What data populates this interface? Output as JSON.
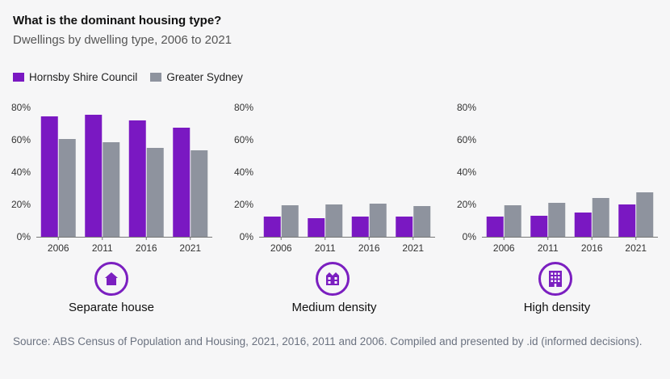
{
  "header": {
    "title": "What is the dominant housing type?",
    "subtitle": "Dwellings by dwelling type, 2006 to 2021"
  },
  "legend": [
    {
      "label": "Hornsby Shire Council",
      "color": "#7a18c2"
    },
    {
      "label": "Greater Sydney",
      "color": "#8e939e"
    }
  ],
  "footer": {
    "source": "Source: ABS Census of Population and Housing, 2021, 2016, 2011 and 2006. Compiled and presented by .id (informed decisions)."
  },
  "chart_data": [
    {
      "type": "bar",
      "title": "Separate house",
      "icon": "house-icon",
      "categories": [
        "2006",
        "2011",
        "2016",
        "2021"
      ],
      "ylim": [
        0,
        80
      ],
      "yticks": [
        "0%",
        "20%",
        "40%",
        "60%",
        "80%"
      ],
      "series": [
        {
          "name": "Hornsby Shire Council",
          "values": [
            74.5,
            75.5,
            72,
            67.5
          ]
        },
        {
          "name": "Greater Sydney",
          "values": [
            60.5,
            58.5,
            55,
            53.5
          ]
        }
      ]
    },
    {
      "type": "bar",
      "title": "Medium density",
      "icon": "townhouse-icon",
      "categories": [
        "2006",
        "2011",
        "2016",
        "2021"
      ],
      "ylim": [
        0,
        80
      ],
      "yticks": [
        "0%",
        "20%",
        "40%",
        "60%",
        "80%"
      ],
      "series": [
        {
          "name": "Hornsby Shire Council",
          "values": [
            12.5,
            11.5,
            12.5,
            12.5
          ]
        },
        {
          "name": "Greater Sydney",
          "values": [
            19.5,
            20,
            20.5,
            19
          ]
        }
      ]
    },
    {
      "type": "bar",
      "title": "High density",
      "icon": "apartment-building-icon",
      "categories": [
        "2006",
        "2011",
        "2016",
        "2021"
      ],
      "ylim": [
        0,
        80
      ],
      "yticks": [
        "0%",
        "20%",
        "40%",
        "60%",
        "80%"
      ],
      "series": [
        {
          "name": "Hornsby Shire Council",
          "values": [
            12.5,
            13,
            15,
            20
          ]
        },
        {
          "name": "Greater Sydney",
          "values": [
            19.5,
            21,
            24,
            27.5
          ]
        }
      ]
    }
  ]
}
